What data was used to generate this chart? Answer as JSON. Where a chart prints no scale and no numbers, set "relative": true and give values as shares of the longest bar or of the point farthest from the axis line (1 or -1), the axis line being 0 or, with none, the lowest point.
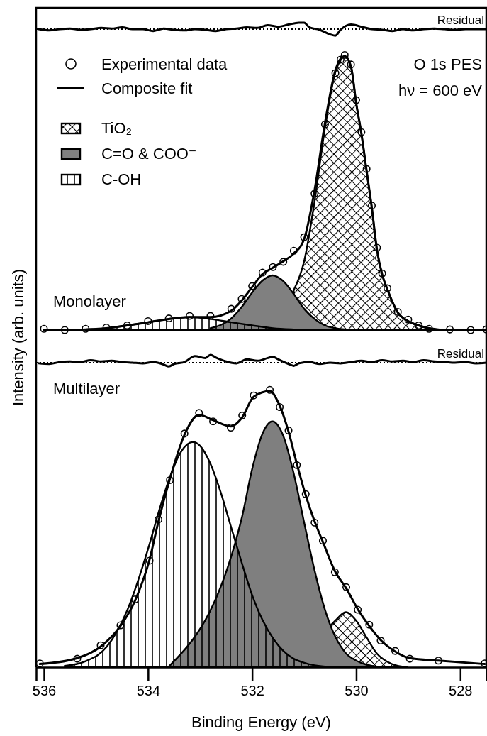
{
  "chart_data": [
    {
      "type": "line",
      "relative": true,
      "xlim": [
        536.15,
        527.5
      ],
      "tick_labels": false,
      "legend": "top left",
      "annotations": [
        "O 1s PES",
        "hν = 600 eV",
        "Monolayer"
      ],
      "ref_lines": [
        {
          "axis": "y",
          "value": 0.979,
          "label": "Residual",
          "line_style": "dotted"
        }
      ],
      "series": [
        {
          "name": "Experimental data",
          "type": "scatter",
          "marker": "circle",
          "color": "#000000",
          "x": [
            536.0,
            535.6,
            535.2,
            534.8,
            534.4,
            534.0,
            533.6,
            533.2,
            532.8,
            532.4,
            532.2,
            532.0,
            531.8,
            531.6,
            531.4,
            531.2,
            531.0,
            530.8,
            530.6,
            530.4,
            530.3,
            530.22,
            530.1,
            530.0,
            529.9,
            529.8,
            529.7,
            529.6,
            529.5,
            529.4,
            529.2,
            529.0,
            528.8,
            528.6,
            528.2,
            527.8,
            527.5
          ],
          "values": [
            0.004,
            0.0,
            0.004,
            0.008,
            0.015,
            0.029,
            0.038,
            0.046,
            0.046,
            0.069,
            0.101,
            0.143,
            0.187,
            0.205,
            0.222,
            0.258,
            0.302,
            0.444,
            0.669,
            0.836,
            0.88,
            0.895,
            0.864,
            0.748,
            0.644,
            0.524,
            0.405,
            0.268,
            0.184,
            0.136,
            0.059,
            0.034,
            0.015,
            0.004,
            0.002,
            0.0,
            0.002
          ]
        },
        {
          "name": "Composite fit",
          "type": "line",
          "color": "#000000",
          "x": [
            536.0,
            535.6,
            535.2,
            534.8,
            534.4,
            534.0,
            533.6,
            533.2,
            532.8,
            532.4,
            532.2,
            532.0,
            531.8,
            531.6,
            531.4,
            531.2,
            531.0,
            530.8,
            530.6,
            530.4,
            530.3,
            530.22,
            530.1,
            530.0,
            529.9,
            529.8,
            529.7,
            529.6,
            529.5,
            529.4,
            529.2,
            529.0,
            528.8,
            528.6,
            528.2,
            527.8,
            527.5
          ],
          "values": [
            0.0,
            0.0,
            0.002,
            0.006,
            0.015,
            0.025,
            0.036,
            0.042,
            0.042,
            0.063,
            0.096,
            0.14,
            0.182,
            0.203,
            0.224,
            0.249,
            0.296,
            0.455,
            0.673,
            0.845,
            0.883,
            0.891,
            0.857,
            0.738,
            0.639,
            0.518,
            0.398,
            0.26,
            0.18,
            0.132,
            0.057,
            0.029,
            0.015,
            0.006,
            0.0,
            0.0,
            0.0
          ]
        },
        {
          "name": "TiO₂",
          "type": "area",
          "color": "#000000",
          "x": [
            531.2,
            531.0,
            530.8,
            530.6,
            530.4,
            530.3,
            530.22,
            530.1,
            530.0,
            529.9,
            529.8,
            529.7,
            529.6,
            529.5,
            529.4,
            529.2,
            529.0,
            528.8,
            528.6,
            528.4
          ],
          "values": [
            0.13,
            0.224,
            0.419,
            0.658,
            0.839,
            0.878,
            0.889,
            0.857,
            0.738,
            0.639,
            0.518,
            0.398,
            0.26,
            0.18,
            0.132,
            0.057,
            0.029,
            0.015,
            0.006,
            0.0
          ]
        },
        {
          "name": "C=O & COO⁻",
          "type": "area",
          "color": "#808080",
          "x": [
            532.8,
            532.6,
            532.4,
            532.2,
            532.0,
            531.8,
            531.61,
            531.4,
            531.2,
            531.0,
            530.8,
            530.6,
            530.4,
            530.2
          ],
          "values": [
            0.006,
            null,
            0.038,
            0.075,
            0.122,
            0.161,
            0.178,
            0.159,
            0.117,
            0.069,
            0.036,
            0.015,
            0.006,
            0.002
          ]
        },
        {
          "name": "C-OH",
          "type": "area",
          "color": "#000000",
          "x": [
            535.2,
            534.8,
            534.4,
            534.0,
            533.6,
            533.2,
            532.8,
            532.4,
            532.0,
            531.6,
            531.2,
            530.8
          ],
          "values": [
            0.002,
            0.006,
            0.015,
            0.025,
            0.036,
            0.042,
            0.036,
            0.025,
            0.015,
            0.006,
            0.002,
            0.0
          ]
        },
        {
          "type": "line",
          "color": "#000000",
          "x": [
            536.1,
            535.9,
            535.7,
            535.5,
            535.3,
            535.1,
            534.9,
            534.7,
            534.5,
            534.3,
            534.1,
            533.9,
            533.7,
            533.5,
            533.3,
            533.1,
            532.9,
            532.7,
            532.5,
            532.3,
            532.1,
            531.9,
            531.7,
            531.5,
            531.3,
            531.1,
            531.0,
            530.9,
            530.7,
            530.5,
            530.4,
            530.3,
            530.1,
            529.9,
            529.7,
            529.5,
            529.3,
            529.1,
            528.9,
            528.7,
            528.5,
            528.3,
            528.1,
            527.9,
            527.7,
            527.5
          ],
          "values": [
            0.979,
            0.975,
            0.979,
            0.981,
            0.977,
            0.979,
            0.983,
            0.981,
            0.985,
            0.979,
            0.979,
            0.973,
            0.981,
            0.977,
            0.975,
            0.979,
            0.977,
            0.973,
            0.979,
            0.981,
            0.985,
            0.983,
            0.992,
            0.987,
            0.994,
            1.0,
            1.0,
            0.985,
            0.977,
            0.962,
            0.958,
            0.977,
            0.994,
            0.987,
            0.979,
            0.977,
            0.973,
            0.979,
            0.975,
            0.979,
            0.981,
            0.979,
            0.977,
            0.979,
            0.979,
            0.979
          ]
        }
      ]
    },
    {
      "type": "line",
      "relative": true,
      "xlabel": "Binding Energy (eV)",
      "ylabel": "Intensity (arb. units)",
      "xlim": [
        536.15,
        527.5
      ],
      "xticks": [
        536,
        534,
        532,
        530,
        528
      ],
      "tick_labels": "x",
      "annotations": [
        "Multilayer"
      ],
      "ref_lines": [
        {
          "axis": "y",
          "value": 0.975,
          "label": "Residual",
          "line_style": "dotted"
        }
      ],
      "series": [
        {
          "type": "line",
          "color": "#000000",
          "x": [
            536.1,
            535.9,
            535.7,
            535.5,
            535.3,
            535.1,
            534.9,
            534.7,
            534.5,
            534.3,
            534.1,
            533.9,
            533.7,
            533.6,
            533.5,
            533.3,
            533.1,
            532.9,
            532.8,
            532.7,
            532.5,
            532.3,
            532.1,
            531.9,
            531.7,
            531.6,
            531.5,
            531.3,
            531.2,
            531.1,
            530.9,
            530.7,
            530.5,
            530.3,
            530.1,
            529.9,
            529.7,
            529.5,
            529.3,
            529.1,
            528.9,
            528.7,
            528.5,
            528.3,
            528.1,
            527.9,
            527.7,
            527.5
          ],
          "values": [
            0.973,
            0.971,
            0.977,
            0.979,
            0.977,
            0.983,
            0.979,
            0.981,
            0.977,
            0.975,
            0.973,
            0.977,
            0.969,
            0.963,
            0.971,
            0.977,
            0.996,
            0.99,
            1.0,
            0.992,
            0.979,
            0.973,
            0.986,
            0.981,
            0.99,
            0.994,
            0.986,
            0.971,
            0.965,
            0.973,
            0.977,
            0.971,
            0.975,
            0.973,
            0.977,
            0.981,
            0.977,
            0.983,
            0.979,
            0.981,
            0.977,
            0.983,
            0.979,
            0.977,
            0.975,
            0.977,
            0.973,
            0.975
          ]
        },
        {
          "type": "scatter",
          "marker": "circle",
          "color": "#000000",
          "x": [
            536.08,
            535.36,
            534.91,
            534.53,
            534.25,
            533.97,
            533.8,
            533.58,
            533.3,
            533.02,
            532.75,
            532.41,
            532.19,
            531.97,
            531.66,
            531.47,
            531.3,
            531.14,
            530.97,
            530.8,
            530.64,
            530.41,
            530.19,
            529.97,
            529.75,
            529.53,
            529.25,
            528.97,
            528.42,
            527.53
          ],
          "values": [
            0.012,
            0.027,
            0.07,
            0.134,
            0.217,
            0.341,
            0.473,
            0.599,
            0.748,
            0.814,
            0.787,
            0.767,
            0.806,
            0.87,
            0.888,
            0.833,
            0.758,
            0.647,
            0.554,
            0.463,
            0.405,
            0.304,
            0.256,
            0.184,
            0.136,
            0.085,
            0.052,
            0.027,
            0.021,
            0.012
          ]
        },
        {
          "type": "line",
          "color": "#000000",
          "x": [
            536.08,
            535.36,
            534.91,
            534.53,
            534.25,
            533.97,
            533.8,
            533.58,
            533.3,
            533.02,
            532.75,
            532.41,
            532.19,
            531.97,
            531.66,
            531.47,
            531.3,
            531.14,
            530.97,
            530.8,
            530.64,
            530.41,
            530.19,
            529.97,
            529.75,
            529.53,
            529.25,
            528.97,
            528.42,
            527.53
          ],
          "values": [
            0.01,
            0.029,
            0.066,
            0.132,
            0.213,
            0.345,
            0.467,
            0.603,
            0.744,
            0.808,
            0.791,
            0.771,
            0.8,
            0.866,
            0.884,
            0.837,
            0.754,
            0.651,
            0.55,
            0.467,
            0.401,
            0.308,
            0.252,
            0.186,
            0.132,
            0.087,
            0.05,
            0.029,
            0.021,
            0.01
          ]
        },
        {
          "type": "area",
          "color": "#000000",
          "x": [
            530.5,
            530.4,
            530.2,
            530.0,
            529.8,
            529.6,
            529.4,
            529.2,
            529.0
          ],
          "values": [
            0.132,
            0.149,
            0.176,
            0.149,
            0.095,
            0.043,
            0.017,
            0.004,
            0.0
          ]
        },
        {
          "type": "area",
          "color": "#7f7f7f",
          "x": [
            533.6,
            533.4,
            533.2,
            533.0,
            532.8,
            532.6,
            532.4,
            532.2,
            532.0,
            531.8,
            531.61,
            531.4,
            531.2,
            531.0,
            530.8,
            530.6,
            530.4,
            530.2,
            530.0,
            529.8,
            529.6,
            529.2
          ],
          "values": [
            0.002,
            null,
            null,
            null,
            null,
            null,
            null,
            0.477,
            0.634,
            0.748,
            0.787,
            0.74,
            0.62,
            0.463,
            0.31,
            0.184,
            0.097,
            0.045,
            0.021,
            0.008,
            0.002,
            0.0
          ]
        },
        {
          "type": "area",
          "color": "#000000",
          "x": [
            535.6,
            535.2,
            534.8,
            534.4,
            534.0,
            533.8,
            533.6,
            533.4,
            533.14,
            533.0,
            532.8,
            532.6,
            532.4,
            532.2,
            532.0,
            531.8,
            531.6,
            531.4,
            531.2,
            531.0,
            530.8,
            530.4
          ],
          "values": [
            0.004,
            0.019,
            0.064,
            0.182,
            0.378,
            0.494,
            0.599,
            0.68,
            0.721,
            0.709,
            0.651,
            0.558,
            0.446,
            0.335,
            0.231,
            0.151,
            0.093,
            0.052,
            0.027,
            0.014,
            0.006,
            0.0
          ]
        }
      ]
    }
  ]
}
